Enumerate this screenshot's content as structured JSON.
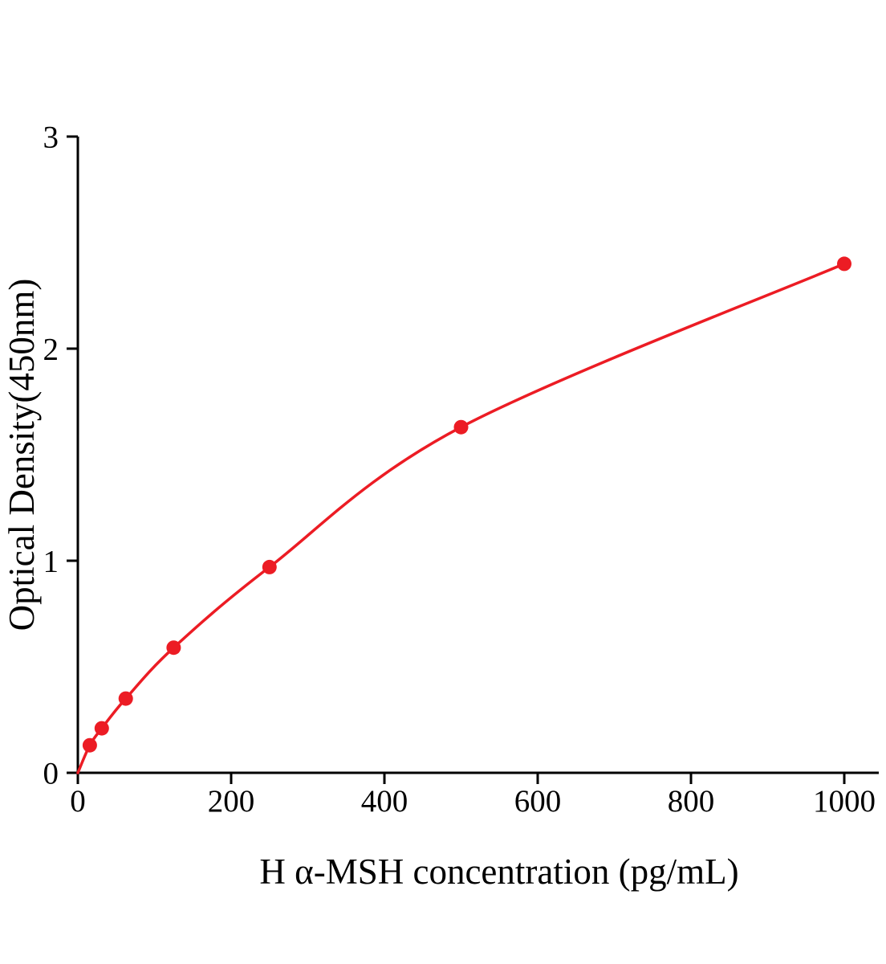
{
  "chart_data": {
    "type": "scatter",
    "title": "",
    "xlabel": "H α-MSH concentration (pg/mL)",
    "ylabel": "Optical Density(450nm)",
    "x": [
      15.6,
      31.25,
      62.5,
      125,
      250,
      500,
      1000
    ],
    "y": [
      0.13,
      0.21,
      0.35,
      0.59,
      0.97,
      1.63,
      2.4
    ],
    "curve_origin": {
      "x": 0,
      "y": 0
    },
    "curve_style": "smooth",
    "xlim": [
      0,
      1045
    ],
    "ylim": [
      0,
      3
    ],
    "xticks": [
      "0",
      "200",
      "400",
      "600",
      "800",
      "1000"
    ],
    "yticks": [
      "0",
      "1",
      "2",
      "3"
    ],
    "grid": false,
    "legend": "none",
    "colors": {
      "series": "#ec1c24",
      "axis": "#000000",
      "background": "#ffffff"
    }
  }
}
